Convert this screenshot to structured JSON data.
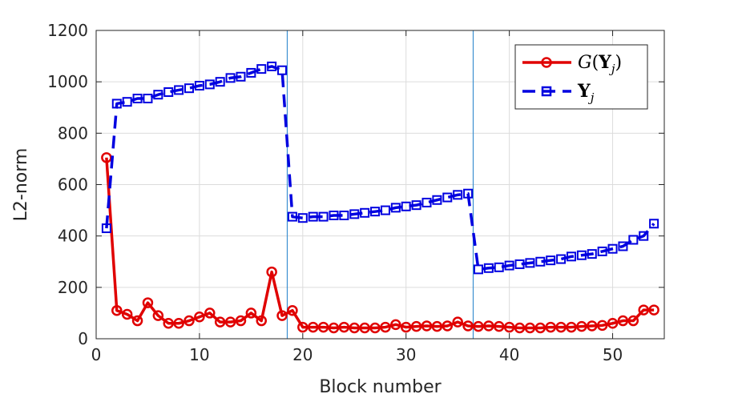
{
  "chart_data": {
    "type": "line",
    "xlabel": "Block number",
    "ylabel": "L2-norm",
    "xlim": [
      0,
      55
    ],
    "ylim": [
      0,
      1200
    ],
    "xticks": [
      0,
      10,
      20,
      30,
      40,
      50
    ],
    "yticks": [
      0,
      200,
      400,
      600,
      800,
      1000,
      1200
    ],
    "grid": true,
    "legend_position": "top-right",
    "vlines": [
      18.5,
      36.5
    ],
    "x": [
      1,
      2,
      3,
      4,
      5,
      6,
      7,
      8,
      9,
      10,
      11,
      12,
      13,
      14,
      15,
      16,
      17,
      18,
      19,
      20,
      21,
      22,
      23,
      24,
      25,
      26,
      27,
      28,
      29,
      30,
      31,
      32,
      33,
      34,
      35,
      36,
      37,
      38,
      39,
      40,
      41,
      42,
      43,
      44,
      45,
      46,
      47,
      48,
      49,
      50,
      51,
      52,
      53,
      54
    ],
    "series": [
      {
        "name": "G(Y_j)",
        "color": "#e00000",
        "line": "solid",
        "marker": "circle",
        "values": [
          705,
          110,
          95,
          70,
          140,
          90,
          60,
          60,
          70,
          85,
          100,
          65,
          65,
          70,
          100,
          70,
          260,
          90,
          110,
          45,
          45,
          45,
          42,
          45,
          42,
          42,
          42,
          45,
          55,
          45,
          48,
          50,
          48,
          50,
          65,
          50,
          48,
          50,
          48,
          45,
          42,
          42,
          42,
          45,
          45,
          45,
          48,
          50,
          52,
          60,
          70,
          70,
          112,
          112
        ]
      },
      {
        "name": "Y_j",
        "color": "#0000e0",
        "line": "dashed",
        "marker": "square",
        "values": [
          430,
          915,
          922,
          935,
          935,
          950,
          960,
          968,
          975,
          985,
          990,
          1000,
          1015,
          1020,
          1035,
          1050,
          1060,
          1045,
          475,
          470,
          475,
          475,
          480,
          480,
          485,
          490,
          495,
          500,
          510,
          515,
          520,
          530,
          540,
          550,
          560,
          565,
          270,
          275,
          278,
          285,
          290,
          295,
          300,
          305,
          310,
          320,
          325,
          330,
          340,
          350,
          360,
          385,
          400,
          448
        ]
      }
    ]
  }
}
